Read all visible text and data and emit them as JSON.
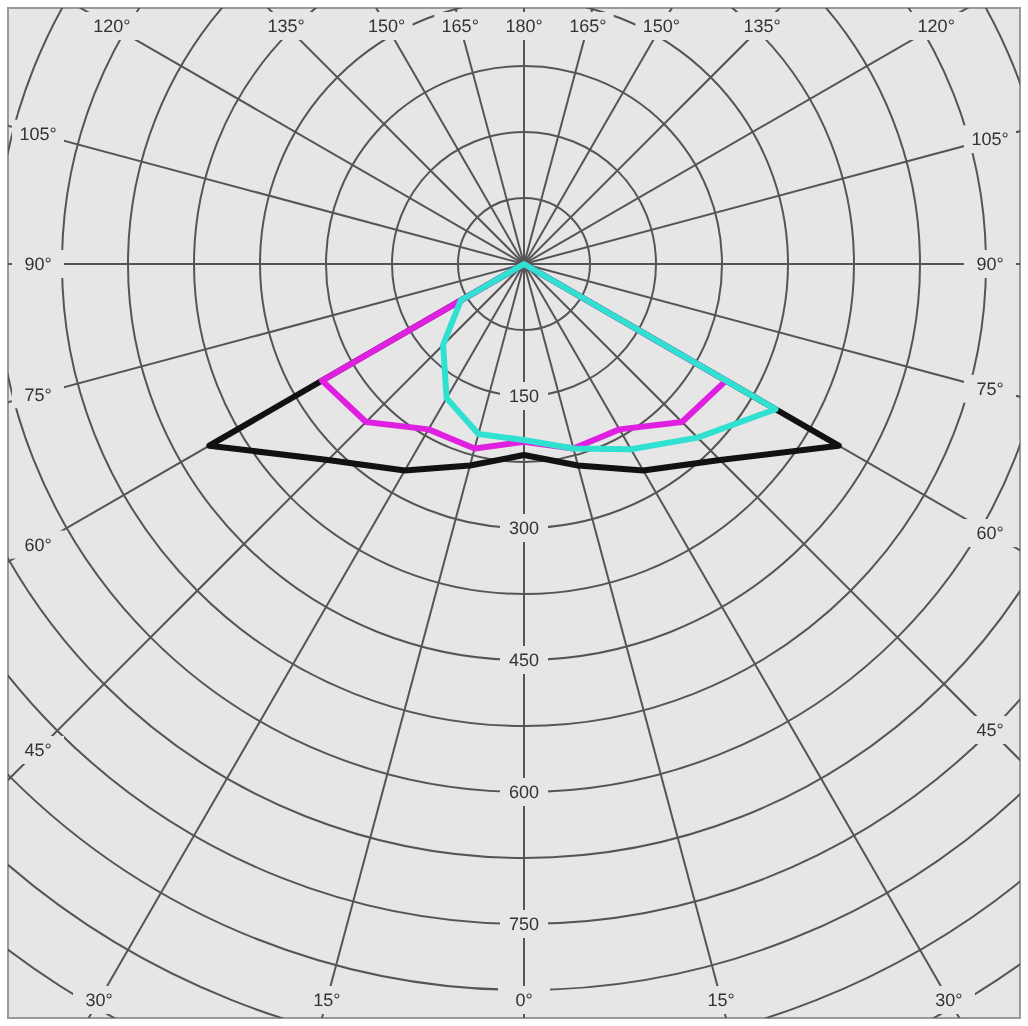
{
  "chart_data": {
    "type": "radar",
    "categories": [
      "180°",
      "165°",
      "150°",
      "135°",
      "120°",
      "105°",
      "90°",
      "75°",
      "60°",
      "45°",
      "30°",
      "15°",
      "0°",
      "15°",
      "30°",
      "45°",
      "60°",
      "75°",
      "90°",
      "105°",
      "120°",
      "135°",
      "150°",
      "165°"
    ],
    "series": [
      {
        "color": "#111111",
        "values": [
          0,
          0,
          0,
          0,
          0,
          0,
          0,
          0,
          413,
          315,
          271,
          237,
          217,
          237,
          271,
          315,
          413,
          0,
          0,
          0,
          0,
          0,
          0,
          0
        ]
      },
      {
        "color": "#e020e0",
        "values": [
          0,
          0,
          0,
          0,
          0,
          0,
          0,
          0,
          265,
          254,
          217,
          217,
          202,
          217,
          217,
          254,
          265,
          0,
          0,
          0,
          0,
          0,
          0,
          0
        ]
      },
      {
        "color": "#30e0d0",
        "values": [
          0,
          0,
          0,
          0,
          0,
          0,
          0,
          0,
          330,
          279,
          243,
          217,
          200,
          200,
          176,
          130,
          83,
          0,
          0,
          0,
          0,
          0,
          0,
          0
        ]
      }
    ],
    "ylim": [
      0,
      1050
    ],
    "yticks": [
      150,
      300,
      450,
      600,
      750
    ],
    "grid": true,
    "marker": "none"
  }
}
